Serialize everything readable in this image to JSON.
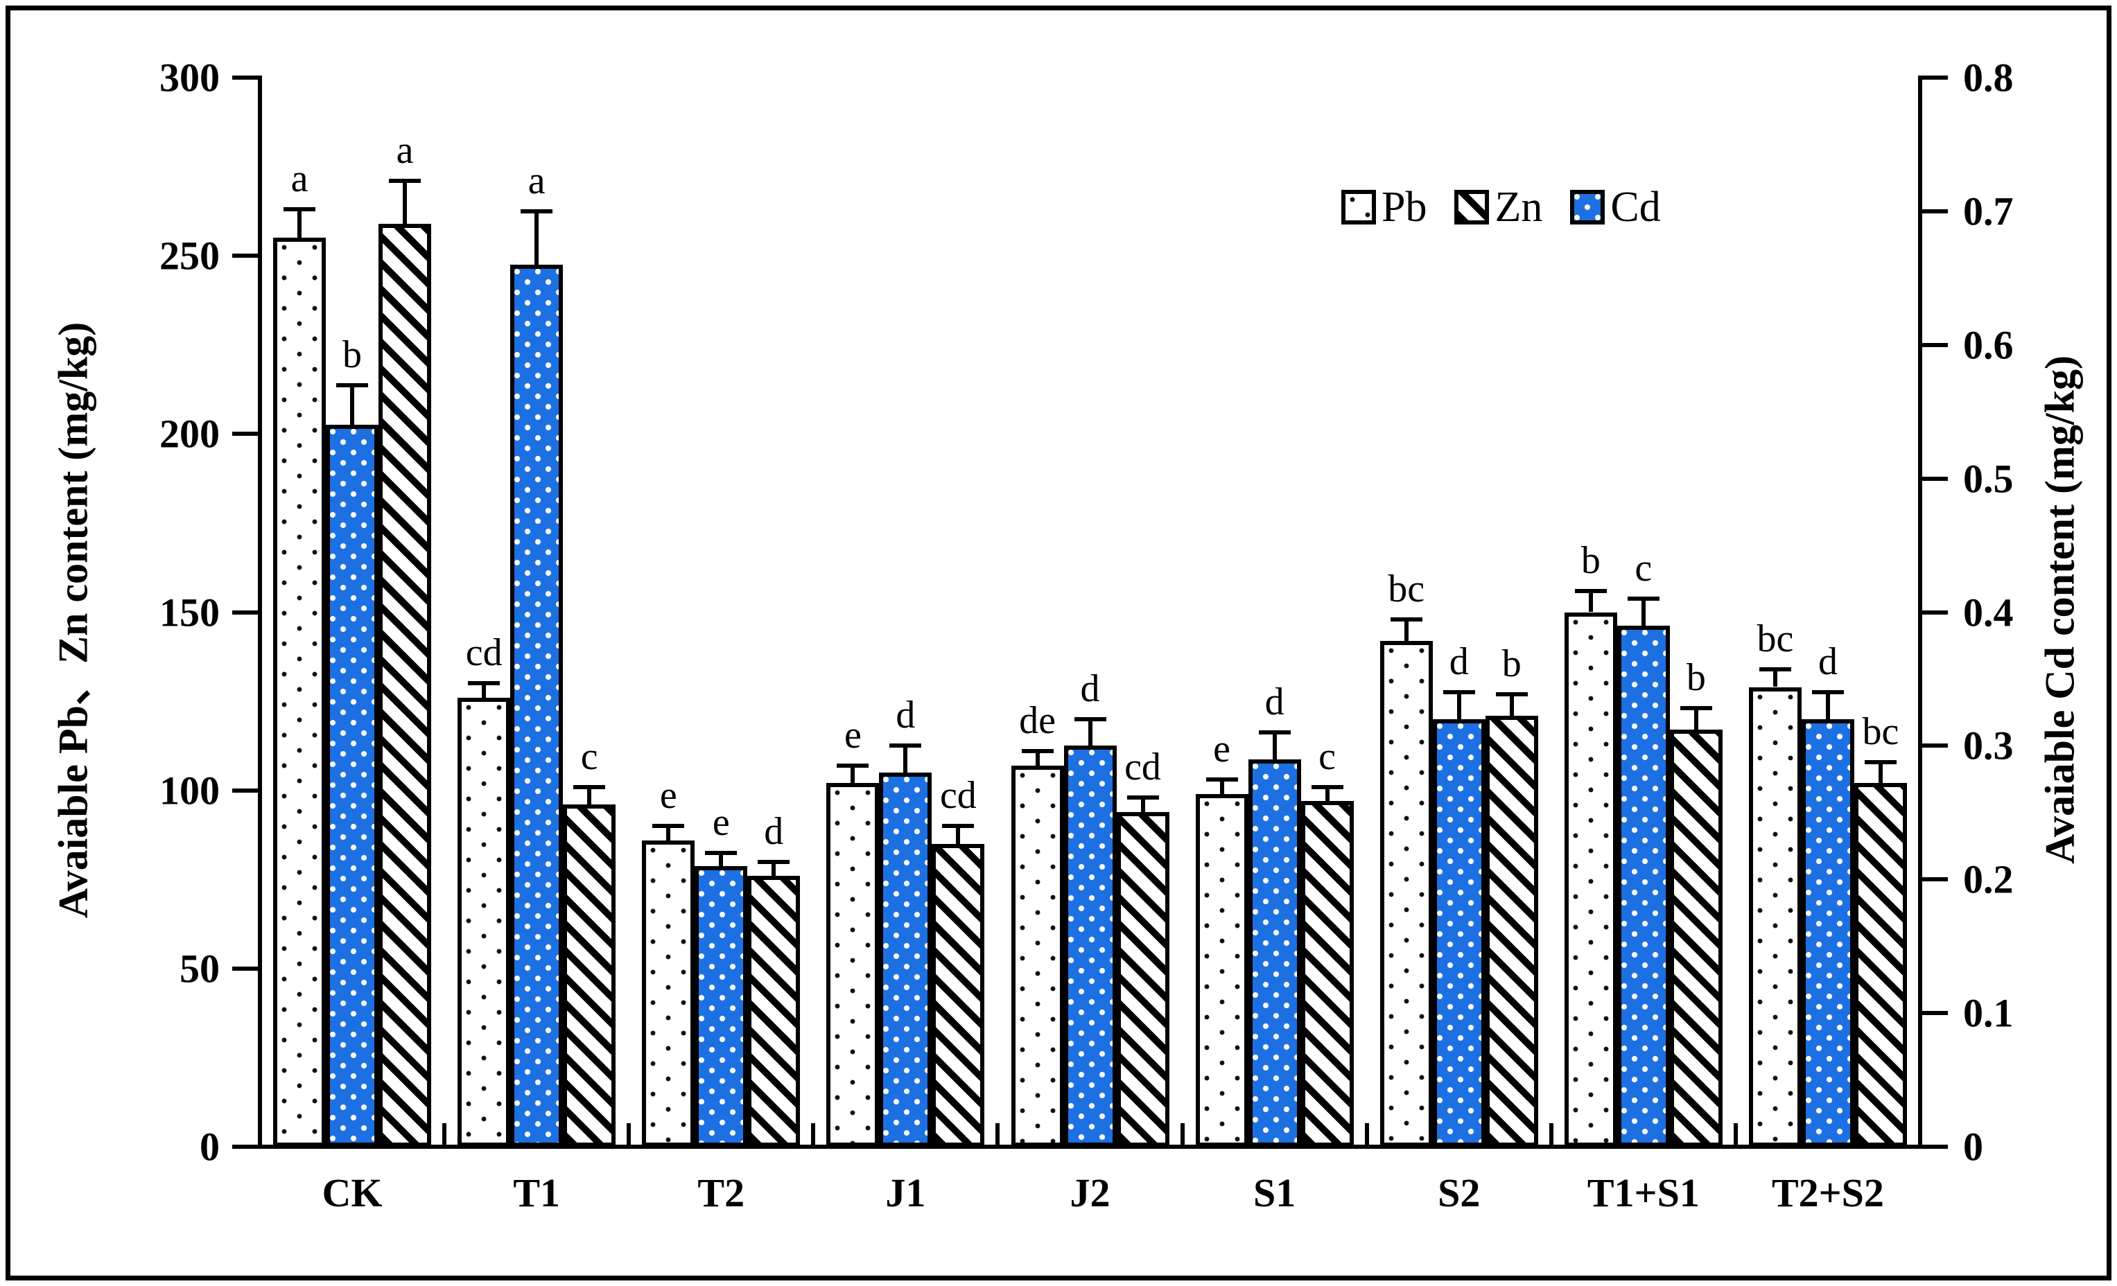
{
  "figure": {
    "background": "#ffffff",
    "frame_color": "#000000",
    "cd_bar_color": "#1c70e2"
  },
  "chart_data": {
    "type": "bar",
    "title": "",
    "categories": [
      "CK",
      "T1",
      "T2",
      "J1",
      "J2",
      "S1",
      "S2",
      "T1+S1",
      "T2+S2"
    ],
    "group_order": [
      "Pb",
      "Cd",
      "Zn"
    ],
    "series": [
      {
        "name": "Pb",
        "axis": "left",
        "pattern": "black-dots-on-white",
        "values": [
          255,
          126,
          86,
          102,
          107,
          99,
          142,
          150,
          129
        ],
        "errors": [
          8,
          4,
          4,
          5,
          4,
          4,
          6,
          6,
          5
        ],
        "sig_letters": [
          "a",
          "cd",
          "e",
          "e",
          "de",
          "e",
          "bc",
          "b",
          "bc"
        ]
      },
      {
        "name": "Cd",
        "axis": "right",
        "pattern": "white-dots-on-blue",
        "color": "#1c70e2",
        "values": [
          0.54,
          0.66,
          0.21,
          0.28,
          0.3,
          0.29,
          0.32,
          0.39,
          0.32
        ],
        "errors": [
          0.03,
          0.04,
          0.01,
          0.02,
          0.02,
          0.02,
          0.02,
          0.02,
          0.02
        ],
        "sig_letters": [
          "b",
          "a",
          "e",
          "d",
          "d",
          "d",
          "d",
          "c",
          "d"
        ]
      },
      {
        "name": "Zn",
        "axis": "left",
        "pattern": "black-diagonal-hatch-on-white",
        "values": [
          259,
          96,
          76,
          85,
          94,
          97,
          121,
          117,
          102
        ],
        "errors": [
          12,
          5,
          4,
          5,
          4,
          4,
          6,
          6,
          6
        ],
        "sig_letters": [
          "a",
          "c",
          "d",
          "cd",
          "cd",
          "c",
          "b",
          "b",
          "bc"
        ]
      }
    ],
    "left_axis": {
      "label": "Avaiable Pb、Zn content (mg/kg)",
      "range": [
        0,
        300
      ],
      "tick_labels": [
        "0",
        "50",
        "100",
        "150",
        "200",
        "250",
        "300"
      ]
    },
    "right_axis": {
      "label": "Avaiable Cd content (mg/kg)",
      "range": [
        0,
        0.8
      ],
      "tick_labels": [
        "0",
        "0.1",
        "0.2",
        "0.3",
        "0.4",
        "0.5",
        "0.6",
        "0.7",
        "0.8"
      ]
    },
    "legend": {
      "position": "top-right",
      "items": [
        {
          "label": "Pb",
          "swatch": "black-dots-on-white"
        },
        {
          "label": "Zn",
          "swatch": "black-diagonal-hatch-on-white"
        },
        {
          "label": "Cd",
          "swatch": "white-dots-on-blue"
        }
      ]
    },
    "grid": false,
    "error_bars": true
  }
}
